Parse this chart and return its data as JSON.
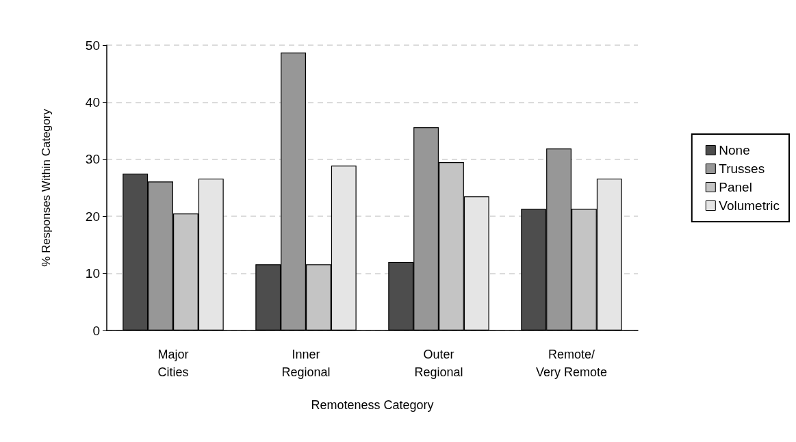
{
  "chart_data": {
    "type": "bar",
    "xlabel": "Remoteness Category",
    "ylabel": "% Responses Within Category",
    "categories": [
      "Major\nCities",
      "Inner\nRegional",
      "Outer\nRegional",
      "Remote/\nVery Remote"
    ],
    "series": [
      {
        "name": "None",
        "color": "#4d4d4d",
        "values": [
          27.5,
          11.6,
          12.0,
          21.3
        ]
      },
      {
        "name": "Trusses",
        "color": "#979797",
        "values": [
          26.1,
          48.7,
          35.6,
          31.9
        ]
      },
      {
        "name": "Panel",
        "color": "#c4c4c4",
        "values": [
          20.5,
          11.6,
          29.5,
          21.3
        ]
      },
      {
        "name": "Volumetric",
        "color": "#e5e5e5",
        "values": [
          26.6,
          28.9,
          23.5,
          26.6
        ]
      }
    ],
    "ylim": [
      0,
      50
    ],
    "yticks": [
      0,
      10,
      20,
      30,
      40,
      50
    ],
    "grid": "y",
    "legend": "right"
  }
}
